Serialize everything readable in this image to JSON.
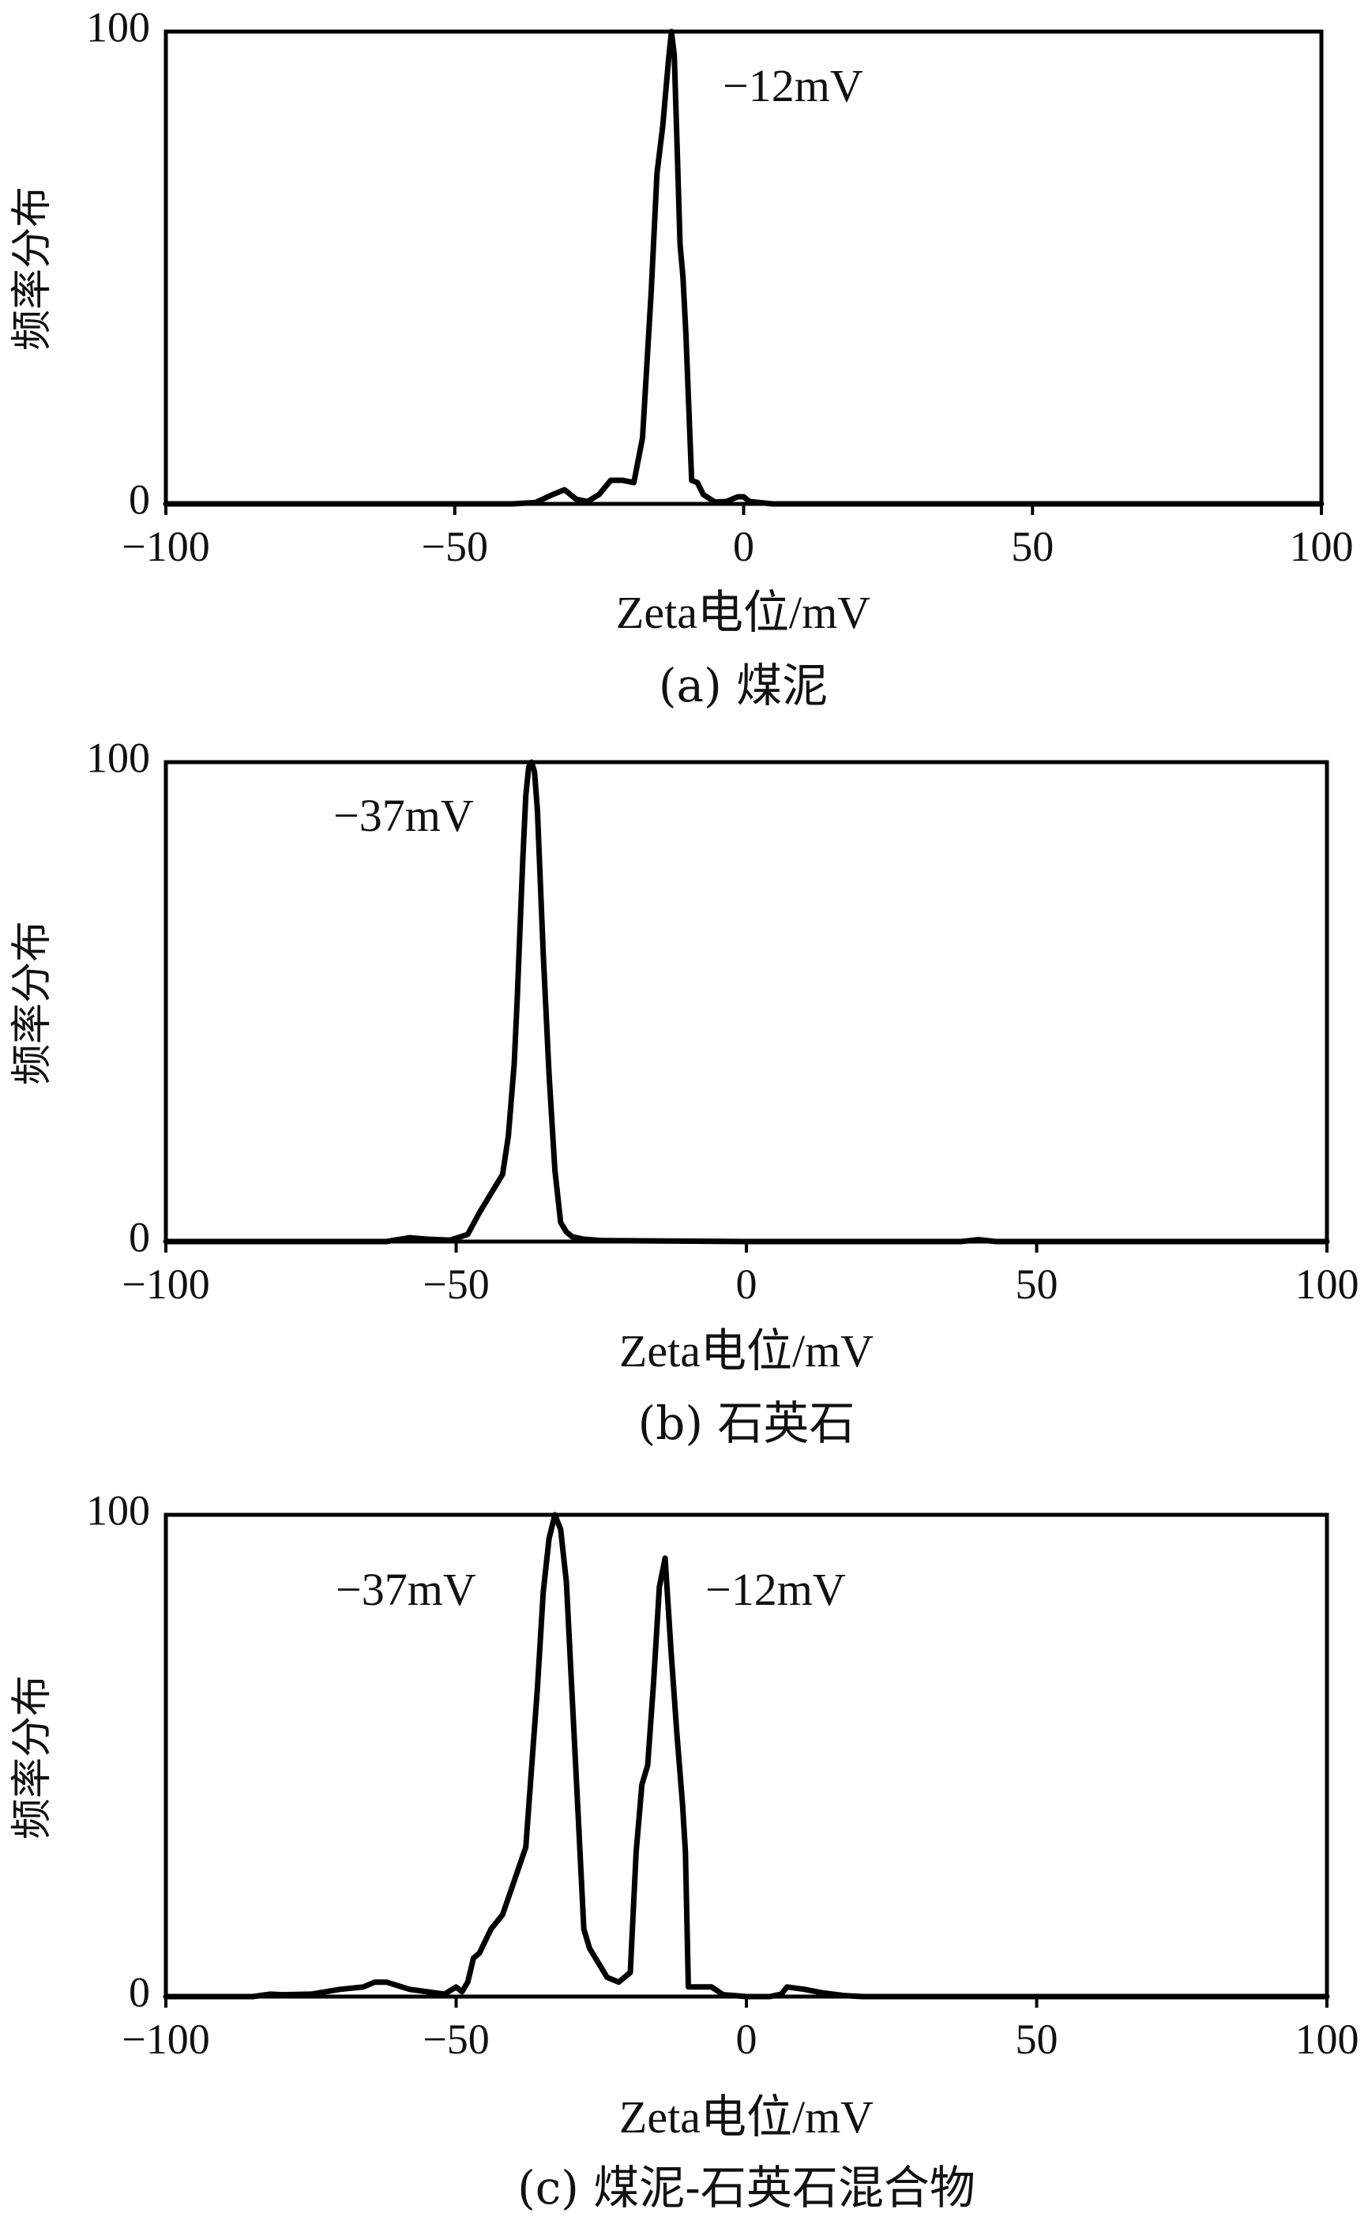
{
  "chart_data": [
    {
      "type": "line",
      "xlabel": "Zeta电位/mV",
      "ylabel": "频率分布",
      "caption": "(a) 煤泥",
      "xlim": [
        -100,
        100
      ],
      "ylim": [
        0,
        100
      ],
      "xticks": [
        "−100",
        "−50",
        "0",
        "50",
        "100"
      ],
      "yticks": [
        "0",
        "100"
      ],
      "annotations": [
        {
          "text": "−12mV",
          "x": -2,
          "y": 88
        }
      ],
      "series": [
        {
          "x": [
            -100,
            -40,
            -36,
            -33,
            -31,
            -29,
            -27,
            -25,
            -23,
            -21,
            -19,
            -17.5,
            -16,
            -15,
            -14,
            -13,
            -12.5,
            -12,
            -11.5,
            -11,
            -10.5,
            -10,
            -9,
            -8,
            -7,
            -5,
            -3,
            -1,
            0,
            1,
            5,
            30,
            100
          ],
          "y": [
            0,
            0,
            0.3,
            2,
            3,
            1,
            0.5,
            2,
            5,
            5,
            4.5,
            14,
            45,
            70,
            80,
            94,
            100,
            95,
            75,
            55,
            48,
            36,
            5,
            4.5,
            2,
            0.4,
            0.5,
            1.5,
            1.5,
            0.5,
            0,
            0,
            0
          ]
        }
      ]
    },
    {
      "type": "line",
      "xlabel": "Zeta电位/mV",
      "ylabel": "频率分布",
      "caption": "(b) 石英石",
      "xlim": [
        -100,
        100
      ],
      "ylim": [
        0,
        100
      ],
      "xticks": [
        "−100",
        "−50",
        "0",
        "50",
        "100"
      ],
      "yticks": [
        "0",
        "100"
      ],
      "annotations": [
        {
          "text": "−37mV",
          "x": -57,
          "y": 88
        }
      ],
      "series": [
        {
          "x": [
            -100,
            -62,
            -58,
            -55,
            -51,
            -48,
            -46,
            -44,
            -42,
            -41,
            -40,
            -39.5,
            -39,
            -38.5,
            -38,
            -37.5,
            -37,
            -36.5,
            -36,
            -35.5,
            -35,
            -34,
            -33,
            -32,
            -31,
            -30,
            -28,
            -25,
            0,
            37,
            40,
            43,
            100
          ],
          "y": [
            0,
            0,
            0.8,
            0.5,
            0.3,
            1.5,
            6,
            10,
            14,
            22,
            37,
            50,
            65,
            80,
            93,
            99,
            100,
            98,
            90,
            75,
            60,
            35,
            15,
            4,
            2,
            1,
            0.5,
            0.2,
            0,
            0,
            0.4,
            0,
            0
          ]
        }
      ]
    },
    {
      "type": "line",
      "xlabel": "Zeta电位/mV",
      "ylabel": "频率分布",
      "caption": "(c) 煤泥-石英石混合物",
      "xlim": [
        -100,
        100
      ],
      "ylim": [
        0,
        100
      ],
      "xticks": [
        "−100",
        "−50",
        "0",
        "50",
        "100"
      ],
      "yticks": [
        "0",
        "100"
      ],
      "annotations": [
        {
          "text": "−37mV",
          "x": -58,
          "y": 84
        },
        {
          "text": "−12mV",
          "x": -7,
          "y": 84
        }
      ],
      "series": [
        {
          "x": [
            -100,
            -85,
            -82,
            -80,
            -75,
            -70,
            -66,
            -64,
            -62,
            -58,
            -55,
            -52,
            -50,
            -49,
            -48,
            -47,
            -46,
            -44,
            -42,
            -40,
            -38,
            -36,
            -35,
            -34,
            -33,
            -32,
            -31,
            -30,
            -29,
            -28,
            -27,
            -26,
            -25,
            -24,
            -22,
            -20,
            -19,
            -18,
            -17,
            -16,
            -15,
            -14,
            -13,
            -12,
            -11,
            -10.5,
            -10,
            -9,
            -8,
            -6,
            -4,
            -2,
            0,
            4,
            6,
            7,
            10,
            13,
            17,
            20,
            50,
            100
          ],
          "y": [
            0,
            0,
            0.5,
            0.4,
            0.5,
            1.5,
            2,
            3,
            3,
            1.5,
            1,
            0.5,
            2,
            1,
            3,
            8,
            9,
            14,
            17,
            24,
            31,
            64,
            84,
            95,
            100,
            97,
            86,
            62,
            38,
            14,
            10,
            8,
            6,
            4,
            3,
            5,
            30,
            44,
            48,
            65,
            85,
            91,
            72,
            55,
            40,
            30,
            2,
            2,
            2,
            2,
            0.4,
            0.2,
            0,
            0,
            0.5,
            2,
            1.5,
            0.8,
            0.2,
            0,
            0,
            0
          ]
        }
      ]
    }
  ]
}
